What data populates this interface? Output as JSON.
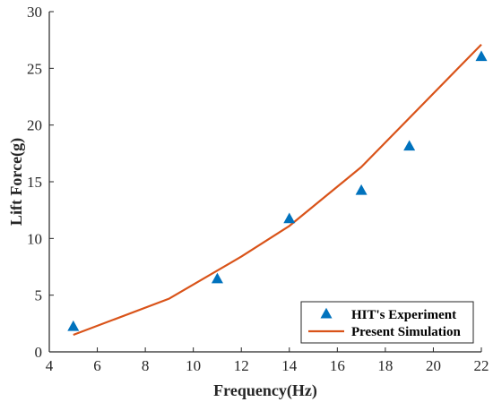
{
  "chart_data": {
    "type": "line",
    "xlabel": "Frequency(Hz)",
    "ylabel": "Lift Force(g)",
    "xlim": [
      4,
      22
    ],
    "ylim": [
      0,
      30
    ],
    "xticks": [
      4,
      6,
      8,
      10,
      12,
      14,
      16,
      18,
      20,
      22
    ],
    "yticks": [
      0,
      5,
      10,
      15,
      20,
      25,
      30
    ],
    "grid": false,
    "legend_position": "bottom-right",
    "series": [
      {
        "name": "HIT's Experiment",
        "type": "scatter",
        "marker": "triangle",
        "color": "#0072BD",
        "x": [
          5,
          11,
          14,
          17,
          19,
          22
        ],
        "y": [
          2.2,
          6.4,
          11.7,
          14.2,
          18.1,
          26.0
        ]
      },
      {
        "name": "Present Simulation",
        "type": "line",
        "color": "#D95319",
        "x": [
          5,
          9,
          12,
          14,
          17,
          22
        ],
        "y": [
          1.5,
          4.7,
          8.4,
          11.1,
          16.3,
          27.1
        ]
      }
    ]
  }
}
